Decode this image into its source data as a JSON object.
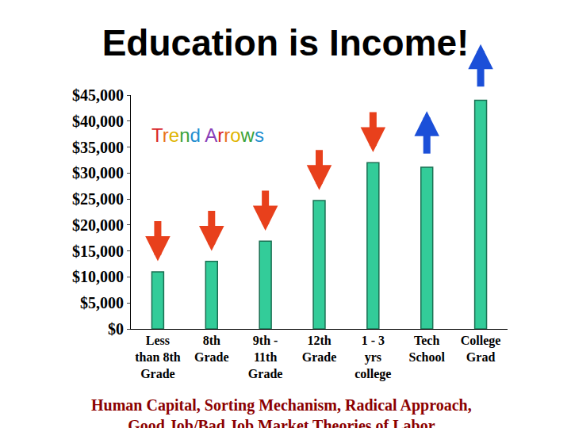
{
  "chart_data": {
    "type": "bar",
    "title": "Education is Income!",
    "categories": [
      "Less than 8th Grade",
      "8th Grade",
      "9th - 11th Grade",
      "12th Grade",
      "1 - 3 yrs college",
      "Tech School",
      "College Grad"
    ],
    "values": [
      11000,
      13000,
      16900,
      24700,
      32000,
      31100,
      44000
    ],
    "color": "#33cc99",
    "ylim": [
      0,
      45000
    ],
    "yticks": [
      {
        "value": 0,
        "label": "$0"
      },
      {
        "value": 5000,
        "label": "$5,000"
      },
      {
        "value": 10000,
        "label": "$10,000"
      },
      {
        "value": 15000,
        "label": "$15,000"
      },
      {
        "value": 20000,
        "label": "$20,000"
      },
      {
        "value": 25000,
        "label": "$25,000"
      },
      {
        "value": 30000,
        "label": "$30,000"
      },
      {
        "value": 35000,
        "label": "$35,000"
      },
      {
        "value": 40000,
        "label": "$40,000"
      },
      {
        "value": 45000,
        "label": "$45,000"
      }
    ],
    "grid": false,
    "annotations": [
      "Trend Arrows",
      "Human Capital, Sorting Mechanism, Radical Approach, Good Job/Bad Job Market Theories of Labor"
    ]
  }
}
